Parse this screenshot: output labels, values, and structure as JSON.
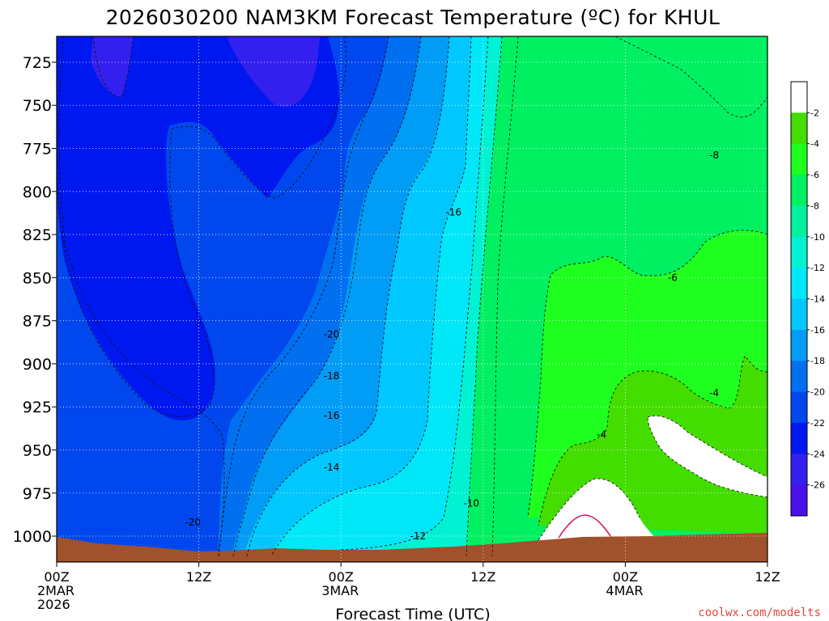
{
  "chart_data": {
    "type": "heatmap",
    "title": "2026030200 NAM3KM Forecast Temperature (ºC) for KHUL",
    "xlabel": "Forecast Time (UTC)",
    "ylabel": "",
    "credit": "coolwx.com/modelts",
    "y_axis": {
      "reversed": true,
      "range": [
        1015,
        710
      ],
      "ticks": [
        725,
        750,
        775,
        800,
        825,
        850,
        875,
        900,
        925,
        950,
        975,
        1000
      ]
    },
    "x_axis": {
      "range_hours": [
        0,
        60
      ],
      "ticks": [
        {
          "hour": 0,
          "label": "00Z",
          "sub1": "2MAR",
          "sub2": "2026"
        },
        {
          "hour": 12,
          "label": "12Z",
          "sub1": "",
          "sub2": ""
        },
        {
          "hour": 24,
          "label": "00Z",
          "sub1": "3MAR",
          "sub2": ""
        },
        {
          "hour": 36,
          "label": "12Z",
          "sub1": "",
          "sub2": ""
        },
        {
          "hour": 48,
          "label": "00Z",
          "sub1": "4MAR",
          "sub2": ""
        },
        {
          "hour": 60,
          "label": "12Z",
          "sub1": "",
          "sub2": ""
        }
      ]
    },
    "colorbar": {
      "levels": [
        -2,
        -4,
        -6,
        -8,
        -10,
        -12,
        -14,
        -16,
        -18,
        -20,
        -22,
        -24,
        -26
      ],
      "colors": [
        "#ffffff",
        "#44dd00",
        "#1fff1f",
        "#00f062",
        "#00f0a0",
        "#00f2d2",
        "#00e8f8",
        "#00c8ff",
        "#009cf5",
        "#0070f0",
        "#0048ee",
        "#0018f0",
        "#3320ee",
        "#4a10e8"
      ]
    },
    "surface_pressure": [
      [
        0,
        1003
      ],
      [
        3,
        1005
      ],
      [
        6,
        1006
      ],
      [
        9,
        1007
      ],
      [
        12,
        1009
      ],
      [
        15,
        1008
      ],
      [
        18,
        1007
      ],
      [
        21,
        1008
      ],
      [
        24,
        1008
      ],
      [
        27,
        1008
      ],
      [
        30,
        1008
      ],
      [
        33,
        1007
      ],
      [
        36,
        1006
      ],
      [
        39,
        1005
      ],
      [
        42,
        1003
      ],
      [
        45,
        1002
      ],
      [
        48,
        1001
      ],
      [
        51,
        1001
      ],
      [
        54,
        1000
      ],
      [
        57,
        1000
      ],
      [
        60,
        999
      ]
    ],
    "contour_labels": [
      {
        "text": "-20",
        "hour": 11.5,
        "p": 992
      },
      {
        "text": "-20",
        "hour": 23.2,
        "p": 883
      },
      {
        "text": "-18",
        "hour": 23.2,
        "p": 907
      },
      {
        "text": "-16",
        "hour": 23.2,
        "p": 930
      },
      {
        "text": "-14",
        "hour": 23.2,
        "p": 960
      },
      {
        "text": "-12",
        "hour": 30.5,
        "p": 1000
      },
      {
        "text": "-10",
        "hour": 35.0,
        "p": 981
      },
      {
        "text": "-16",
        "hour": 33.5,
        "p": 812
      },
      {
        "text": "-8",
        "hour": 55.5,
        "p": 779
      },
      {
        "text": "-6",
        "hour": 52.0,
        "p": 850
      },
      {
        "text": "-4",
        "hour": 55.5,
        "p": 917
      },
      {
        "text": "-4",
        "hour": 46.0,
        "p": 941
      }
    ]
  }
}
